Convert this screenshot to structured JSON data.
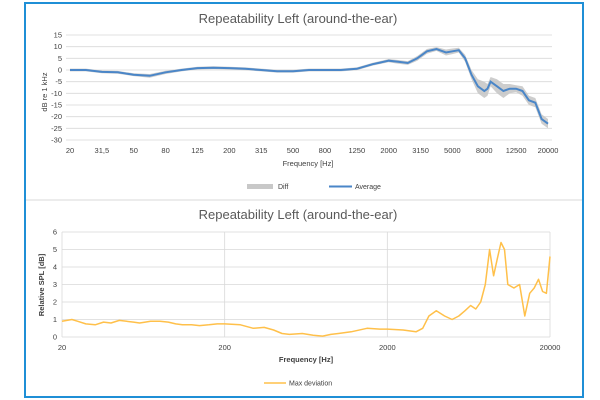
{
  "colors": {
    "border": "#1f8fd6",
    "average": "#4a86c8",
    "diff": "#c8c8c8",
    "max_deviation": "#ffc04a",
    "grid": "#d9d9d9"
  },
  "chart_data": [
    {
      "type": "area",
      "title": "Repeatability Left (around-the-ear)",
      "xlabel": "Frequency [Hz]",
      "ylabel": "dB re 1 kHz",
      "x_scale": "categorical",
      "x_ticks": [
        "20",
        "31,5",
        "50",
        "80",
        "125",
        "200",
        "315",
        "500",
        "800",
        "1250",
        "2000",
        "3150",
        "5000",
        "8000",
        "12500",
        "20000"
      ],
      "ylim": [
        -30,
        15
      ],
      "y_ticks": [
        "-30",
        "-25",
        "-20",
        "-15",
        "-10",
        "-5",
        "0",
        "5",
        "10",
        "15"
      ],
      "grid": "horizontal",
      "legend_position": "bottom",
      "series": [
        {
          "name": "Diff",
          "style": "band"
        },
        {
          "name": "Average",
          "style": "line"
        }
      ],
      "x_index": [
        0,
        0.5,
        1,
        1.5,
        2,
        2.5,
        3,
        3.5,
        4,
        4.5,
        5,
        5.5,
        6,
        6.5,
        7,
        7.5,
        8,
        8.5,
        9,
        9.5,
        10,
        10.3,
        10.6,
        10.9,
        11.2,
        11.5,
        11.8,
        12,
        12.2,
        12.4,
        12.6,
        12.8,
        13,
        13.1,
        13.2,
        13.4,
        13.6,
        13.8,
        14,
        14.2,
        14.4,
        14.6,
        14.8,
        15
      ],
      "average": [
        0,
        0,
        -0.8,
        -1,
        -2,
        -2.5,
        -1,
        0,
        0.8,
        1,
        0.8,
        0.5,
        0,
        -0.5,
        -0.5,
        0,
        0,
        0,
        0.5,
        2.5,
        4,
        3.5,
        3,
        5,
        8,
        9,
        7.5,
        8,
        8.5,
        5,
        -2,
        -7,
        -9,
        -8,
        -5,
        -7,
        -9,
        -8,
        -8,
        -9,
        -13,
        -14,
        -21,
        -23
      ],
      "diff_upper": [
        0.6,
        0.6,
        -0.2,
        -0.4,
        -1.4,
        -1.7,
        -0.3,
        0.6,
        1.4,
        1.6,
        1.4,
        1.1,
        0.6,
        0.1,
        0.1,
        0.6,
        0.6,
        0.6,
        1.1,
        3.1,
        4.7,
        4.3,
        3.8,
        6,
        9,
        9.8,
        8.8,
        9.2,
        9.5,
        6.5,
        0,
        -4,
        -5,
        -6,
        -3,
        -4,
        -6,
        -6,
        -6.5,
        -7,
        -11,
        -12,
        -19,
        -21
      ],
      "diff_lower": [
        -0.6,
        -0.6,
        -1.4,
        -1.6,
        -2.6,
        -3.3,
        -1.7,
        -0.6,
        0.2,
        0.4,
        0.2,
        -0.1,
        -0.6,
        -1.1,
        -1.1,
        -0.6,
        -0.6,
        -0.6,
        -0.1,
        1.9,
        3.3,
        2.7,
        2.2,
        4,
        7,
        8.2,
        6.2,
        6.8,
        7.5,
        3.5,
        -4,
        -10,
        -12,
        -11,
        -7,
        -10,
        -12,
        -10,
        -9.5,
        -11,
        -15,
        -16,
        -23,
        -25
      ]
    },
    {
      "type": "line",
      "title": "Repeatability Left (around-the-ear)",
      "xlabel": "Frequency [Hz]",
      "ylabel": "Relative SPL [dB]",
      "x_scale": "log",
      "xlim": [
        20,
        20000
      ],
      "x_ticks": [
        "20",
        "200",
        "2000",
        "20000"
      ],
      "ylim": [
        0,
        6
      ],
      "y_ticks": [
        "0",
        "1",
        "2",
        "3",
        "4",
        "5",
        "6"
      ],
      "grid": "both",
      "legend_position": "bottom",
      "series": [
        {
          "name": "Max deviation",
          "x": [
            20,
            23,
            25,
            28,
            32,
            36,
            40,
            45,
            50,
            55,
            60,
            65,
            70,
            80,
            90,
            100,
            110,
            125,
            140,
            160,
            180,
            200,
            250,
            300,
            350,
            400,
            450,
            500,
            600,
            700,
            800,
            900,
            1000,
            1200,
            1500,
            1800,
            2000,
            2500,
            3000,
            3300,
            3600,
            4000,
            4500,
            5000,
            5500,
            6000,
            6500,
            7000,
            7500,
            8000,
            8500,
            9000,
            9500,
            10000,
            10500,
            11000,
            12000,
            13000,
            14000,
            15000,
            16000,
            17000,
            18000,
            19000,
            20000
          ],
          "y": [
            0.9,
            1.0,
            0.9,
            0.75,
            0.7,
            0.85,
            0.8,
            0.95,
            0.9,
            0.85,
            0.8,
            0.85,
            0.9,
            0.9,
            0.85,
            0.75,
            0.7,
            0.7,
            0.65,
            0.7,
            0.75,
            0.75,
            0.7,
            0.5,
            0.55,
            0.4,
            0.2,
            0.15,
            0.2,
            0.1,
            0.05,
            0.15,
            0.2,
            0.3,
            0.5,
            0.45,
            0.45,
            0.4,
            0.3,
            0.5,
            1.2,
            1.5,
            1.2,
            1.0,
            1.2,
            1.5,
            1.8,
            1.6,
            2.0,
            3.0,
            5.0,
            3.5,
            4.5,
            5.4,
            5.0,
            3.0,
            2.8,
            3.0,
            1.2,
            2.5,
            2.8,
            3.3,
            2.6,
            2.5,
            4.6
          ]
        }
      ]
    }
  ]
}
